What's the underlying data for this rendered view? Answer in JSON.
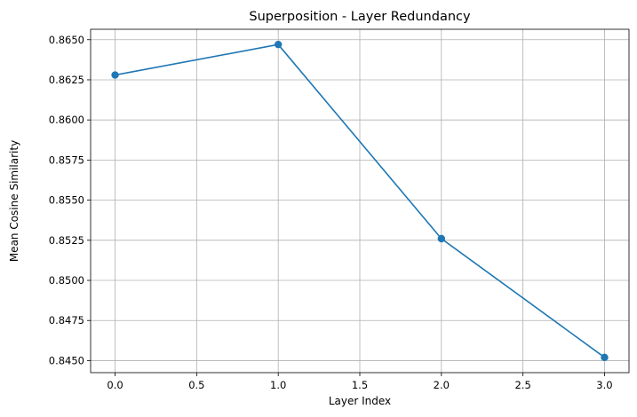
{
  "chart_data": {
    "type": "line",
    "title": "Superposition - Layer Redundancy",
    "xlabel": "Layer Index",
    "ylabel": "Mean Cosine Similarity",
    "xlim": [
      -0.15,
      3.15
    ],
    "ylim": [
      0.84425,
      0.86565
    ],
    "xticks": [
      0.0,
      0.5,
      1.0,
      1.5,
      2.0,
      2.5,
      3.0
    ],
    "xtick_labels": [
      "0.0",
      "0.5",
      "1.0",
      "1.5",
      "2.0",
      "2.5",
      "3.0"
    ],
    "yticks": [
      0.845,
      0.8475,
      0.85,
      0.8525,
      0.855,
      0.8575,
      0.86,
      0.8625,
      0.865
    ],
    "ytick_labels": [
      "0.8450",
      "0.8475",
      "0.8500",
      "0.8525",
      "0.8550",
      "0.8575",
      "0.8600",
      "0.8625",
      "0.8650"
    ],
    "grid": true,
    "series": [
      {
        "x": [
          0,
          1,
          2,
          3
        ],
        "y": [
          0.8628,
          0.8647,
          0.8526,
          0.8452
        ],
        "color": "#1f77b4",
        "marker": "circle"
      }
    ]
  }
}
